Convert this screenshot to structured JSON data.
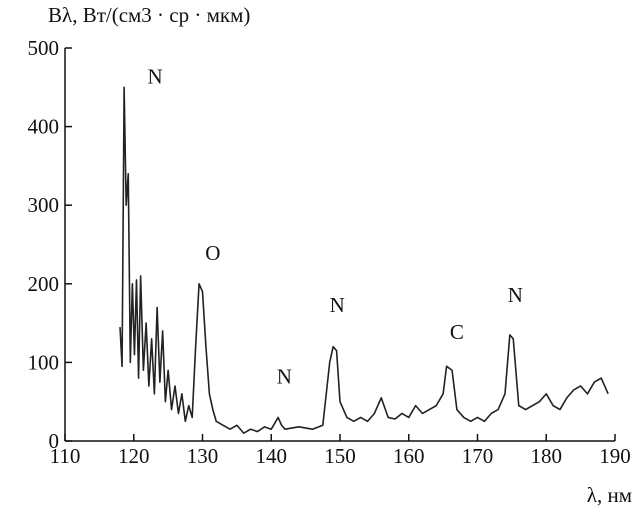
{
  "chart_data": {
    "type": "line",
    "y_label": "Bλ, Вт/(см3 · ср · мкм)",
    "x_label": "λ, нм",
    "x": [
      118,
      118.3,
      118.6,
      118.9,
      119.2,
      119.5,
      119.8,
      120.1,
      120.4,
      120.7,
      121,
      121.4,
      121.8,
      122.2,
      122.6,
      123,
      123.4,
      123.8,
      124.2,
      124.6,
      125,
      125.5,
      126,
      126.5,
      127,
      127.5,
      128,
      128.5,
      129,
      129.5,
      130,
      130.5,
      131,
      131.5,
      132,
      133,
      134,
      135,
      136,
      137,
      138,
      139,
      140,
      141,
      141.5,
      142,
      144,
      146,
      147.5,
      148.5,
      149,
      149.5,
      150,
      151,
      152,
      153,
      154,
      155,
      156,
      157,
      158,
      159,
      160,
      161,
      162,
      163,
      164,
      165,
      165.5,
      166.3,
      167,
      168,
      169,
      170,
      171,
      172,
      173,
      174,
      174.7,
      175.2,
      176,
      177,
      178,
      179,
      180,
      181,
      182,
      183,
      184,
      185,
      186,
      187,
      188,
      188.5,
      189
    ],
    "series": [
      {
        "color": "#222222",
        "values": [
          145,
          95,
          450,
          300,
          340,
          100,
          200,
          110,
          205,
          80,
          210,
          90,
          150,
          70,
          130,
          60,
          170,
          75,
          140,
          50,
          90,
          40,
          70,
          35,
          60,
          25,
          45,
          30,
          120,
          200,
          190,
          120,
          60,
          40,
          25,
          20,
          15,
          20,
          10,
          15,
          12,
          18,
          15,
          30,
          20,
          15,
          18,
          15,
          20,
          100,
          120,
          115,
          50,
          30,
          25,
          30,
          25,
          35,
          55,
          30,
          28,
          35,
          30,
          45,
          35,
          40,
          45,
          60,
          95,
          90,
          40,
          30,
          25,
          30,
          25,
          35,
          40,
          60,
          135,
          130,
          45,
          40,
          45,
          50,
          60,
          45,
          40,
          55,
          65,
          70,
          60,
          75,
          80,
          70,
          60
        ]
      }
    ],
    "xlim": [
      110,
      190
    ],
    "ylim": [
      0,
      500
    ],
    "xticks": [
      110,
      120,
      130,
      140,
      150,
      160,
      170,
      180,
      190
    ],
    "yticks": [
      0,
      100,
      200,
      300,
      400,
      500
    ],
    "grid": false,
    "annotations": [
      {
        "text": "N",
        "x": 123.1,
        "y": 455
      },
      {
        "text": "O",
        "x": 131.5,
        "y": 230
      },
      {
        "text": "N",
        "x": 141.9,
        "y": 73
      },
      {
        "text": "N",
        "x": 149.6,
        "y": 164
      },
      {
        "text": "C",
        "x": 167,
        "y": 130
      },
      {
        "text": "N",
        "x": 175.5,
        "y": 177
      }
    ]
  }
}
